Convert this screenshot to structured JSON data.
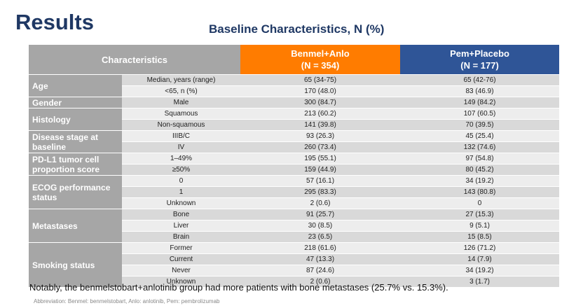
{
  "title": "Results",
  "subtitle": "Baseline Characteristics, N (%)",
  "table": {
    "header": {
      "characteristics": "Characteristics",
      "arm1_name": "Benmel+Anlo",
      "arm1_n": "(N  = 354)",
      "arm2_name": "Pem+Placebo",
      "arm2_n": "(N = 177)"
    },
    "rows": [
      {
        "sub": "Median, years (range)",
        "a": "65 (34-75)",
        "b": "65 (42-76)"
      },
      {
        "sub": "<65, n (%)",
        "a": "170 (48.0)",
        "b": "83 (46.9)"
      },
      {
        "sub": "Male",
        "a": "300 (84.7)",
        "b": "149 (84.2)"
      },
      {
        "sub": "Squamous",
        "a": "213 (60.2)",
        "b": "107 (60.5)"
      },
      {
        "sub": "Non-squamous",
        "a": "141 (39.8)",
        "b": "70 (39.5)"
      },
      {
        "sub": "IIIB/C",
        "a": "93 (26.3)",
        "b": "45 (25.4)"
      },
      {
        "sub": "IV",
        "a": "260 (73.4)",
        "b": "132 (74.6)"
      },
      {
        "sub": "1–49%",
        "a": "195 (55.1)",
        "b": "97 (54.8)"
      },
      {
        "sub": "≥50%",
        "a": "159 (44.9)",
        "b": "80 (45.2)"
      },
      {
        "sub": "0",
        "a": "57 (16.1)",
        "b": "34 (19.2)"
      },
      {
        "sub": "1",
        "a": "295 (83.3)",
        "b": "143 (80.8)"
      },
      {
        "sub": "Unknown",
        "a": "2 (0.6)",
        "b": "0"
      },
      {
        "sub": "Bone",
        "a": "91 (25.7)",
        "b": "27 (15.3)"
      },
      {
        "sub": "Liver",
        "a": "30 (8.5)",
        "b": "9 (5.1)"
      },
      {
        "sub": "Brain",
        "a": "23 (6.5)",
        "b": "15 (8.5)"
      },
      {
        "sub": "Former",
        "a": "218 (61.6)",
        "b": "126 (71.2)"
      },
      {
        "sub": "Current",
        "a": "47 (13.3)",
        "b": "14 (7.9)"
      },
      {
        "sub": "Never",
        "a": "87 (24.6)",
        "b": "34 (19.2)"
      },
      {
        "sub": "Unknown",
        "a": "2 (0.6)",
        "b": "3 (1.7)"
      }
    ],
    "categories": [
      {
        "label": "Age"
      },
      {
        "label": "Gender"
      },
      {
        "label": "Histology"
      },
      {
        "label": "Disease stage at baseline"
      },
      {
        "label": "PD-L1 tumor  cell proportion score"
      },
      {
        "label": "ECOG performance status"
      },
      {
        "label": "Metastases"
      },
      {
        "label": "Smoking status"
      }
    ]
  },
  "note": "Notably, the benmelstobart+anlotinib group had more patients with bone metastases (25.7% vs. 15.3%).",
  "abbreviation": "Abbreviation: Benmel: benmelstobart, Anlo: anlotinib, Pem: pembrolizumab"
}
